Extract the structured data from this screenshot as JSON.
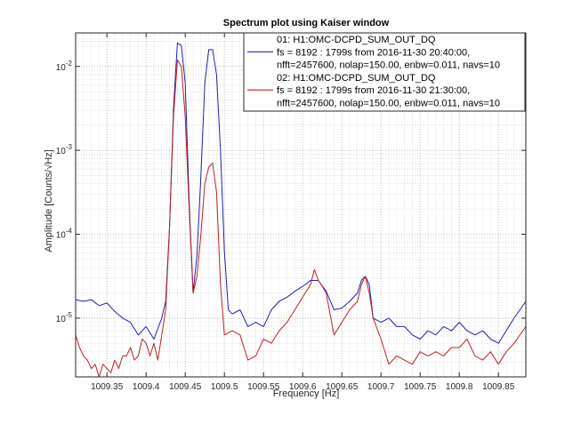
{
  "chart_data": {
    "type": "line",
    "title": "Spectrum plot using Kaiser window",
    "xlabel": "Frequency [Hz]",
    "ylabel": "Amplitude [Counts/√Hz]",
    "xlim": [
      1009.31,
      1009.885
    ],
    "ylim_log10": [
      -5.7,
      -1.6
    ],
    "y_scale": "log",
    "grid": "major and minor, dotted",
    "x_ticks": [
      {
        "value": 1009.35,
        "label": "1009.35"
      },
      {
        "value": 1009.4,
        "label": "1009.4"
      },
      {
        "value": 1009.45,
        "label": "1009.45"
      },
      {
        "value": 1009.5,
        "label": "1009.5"
      },
      {
        "value": 1009.55,
        "label": "1009.55"
      },
      {
        "value": 1009.6,
        "label": "1009.6"
      },
      {
        "value": 1009.65,
        "label": "1009.65"
      },
      {
        "value": 1009.7,
        "label": "1009.7"
      },
      {
        "value": 1009.75,
        "label": "1009.75"
      },
      {
        "value": 1009.8,
        "label": "1009.8"
      },
      {
        "value": 1009.85,
        "label": "1009.85"
      }
    ],
    "y_ticks": [
      {
        "exp": -2,
        "base": "10",
        "sup": "-2"
      },
      {
        "exp": -3,
        "base": "10",
        "sup": "-3"
      },
      {
        "exp": -4,
        "base": "10",
        "sup": "-4"
      },
      {
        "exp": -5,
        "base": "10",
        "sup": "-5"
      }
    ],
    "legend": {
      "placement": "top-right",
      "entries": [
        {
          "lines": [
            "01: H1:OMC-DCPD_SUM_OUT_DQ",
            "fs = 8192 : 1799s from 2016-11-30 20:40:00,",
            "nfft=2457600, nolap=150.00, enbw=0.011, navs=10"
          ],
          "marker_line": 1
        },
        {
          "lines": [
            "02: H1:OMC-DCPD_SUM_OUT_DQ",
            "fs = 8192 : 1799s from 2016-11-30 21:30:00,",
            "nfft=2457600, nolap=150.00, enbw=0.011, navs=10"
          ],
          "marker_line": 1
        }
      ]
    },
    "series": [
      {
        "color": "#1f1fb4",
        "x": [
          1009.31,
          1009.32,
          1009.33,
          1009.34,
          1009.35,
          1009.36,
          1009.37,
          1009.38,
          1009.39,
          1009.4,
          1009.41,
          1009.42,
          1009.425,
          1009.43,
          1009.435,
          1009.44,
          1009.445,
          1009.45,
          1009.455,
          1009.46,
          1009.465,
          1009.47,
          1009.475,
          1009.48,
          1009.485,
          1009.49,
          1009.495,
          1009.5,
          1009.505,
          1009.51,
          1009.52,
          1009.53,
          1009.54,
          1009.55,
          1009.56,
          1009.57,
          1009.58,
          1009.59,
          1009.6,
          1009.61,
          1009.62,
          1009.63,
          1009.64,
          1009.65,
          1009.66,
          1009.67,
          1009.675,
          1009.68,
          1009.685,
          1009.69,
          1009.7,
          1009.71,
          1009.72,
          1009.73,
          1009.74,
          1009.75,
          1009.76,
          1009.77,
          1009.78,
          1009.79,
          1009.8,
          1009.81,
          1009.82,
          1009.83,
          1009.84,
          1009.85,
          1009.86,
          1009.87,
          1009.885
        ],
        "log10_y": [
          -4.78,
          -4.8,
          -4.78,
          -4.85,
          -4.82,
          -4.92,
          -5.0,
          -5.05,
          -5.2,
          -5.1,
          -5.25,
          -5.0,
          -4.8,
          -3.9,
          -2.5,
          -1.72,
          -1.75,
          -2.2,
          -3.6,
          -4.7,
          -4.25,
          -3.3,
          -2.2,
          -1.8,
          -1.8,
          -2.1,
          -3.0,
          -4.2,
          -4.9,
          -4.95,
          -4.9,
          -5.1,
          -5.05,
          -5.1,
          -4.9,
          -4.8,
          -4.75,
          -4.68,
          -4.62,
          -4.55,
          -4.55,
          -4.68,
          -4.9,
          -4.88,
          -4.8,
          -4.7,
          -4.55,
          -4.5,
          -4.6,
          -5.0,
          -5.05,
          -5.0,
          -5.1,
          -5.1,
          -5.2,
          -5.25,
          -5.15,
          -5.2,
          -5.1,
          -5.15,
          -5.05,
          -5.15,
          -5.2,
          -5.15,
          -5.25,
          -5.3,
          -5.15,
          -5.0,
          -4.8
        ]
      },
      {
        "color": "#c02020",
        "x": [
          1009.31,
          1009.315,
          1009.32,
          1009.325,
          1009.33,
          1009.335,
          1009.34,
          1009.345,
          1009.35,
          1009.355,
          1009.36,
          1009.365,
          1009.37,
          1009.375,
          1009.38,
          1009.385,
          1009.39,
          1009.395,
          1009.4,
          1009.405,
          1009.41,
          1009.415,
          1009.42,
          1009.425,
          1009.43,
          1009.435,
          1009.44,
          1009.445,
          1009.45,
          1009.455,
          1009.46,
          1009.465,
          1009.47,
          1009.475,
          1009.48,
          1009.485,
          1009.49,
          1009.495,
          1009.5,
          1009.51,
          1009.52,
          1009.53,
          1009.54,
          1009.55,
          1009.56,
          1009.57,
          1009.58,
          1009.59,
          1009.6,
          1009.61,
          1009.615,
          1009.62,
          1009.625,
          1009.63,
          1009.64,
          1009.65,
          1009.66,
          1009.67,
          1009.675,
          1009.68,
          1009.685,
          1009.69,
          1009.7,
          1009.71,
          1009.72,
          1009.73,
          1009.74,
          1009.75,
          1009.76,
          1009.77,
          1009.78,
          1009.79,
          1009.8,
          1009.81,
          1009.82,
          1009.83,
          1009.84,
          1009.85,
          1009.86,
          1009.87,
          1009.885
        ],
        "log10_y": [
          -5.2,
          -5.35,
          -5.45,
          -5.5,
          -5.6,
          -5.55,
          -5.7,
          -5.55,
          -5.6,
          -5.65,
          -5.5,
          -5.6,
          -5.45,
          -5.45,
          -5.35,
          -5.5,
          -5.45,
          -5.25,
          -5.3,
          -5.45,
          -5.3,
          -5.5,
          -5.2,
          -4.9,
          -3.9,
          -2.6,
          -1.92,
          -2.0,
          -2.6,
          -3.7,
          -4.7,
          -4.5,
          -4.0,
          -3.4,
          -3.2,
          -3.15,
          -3.5,
          -4.6,
          -5.2,
          -5.15,
          -5.2,
          -5.5,
          -5.45,
          -5.25,
          -5.3,
          -5.15,
          -5.05,
          -4.9,
          -4.75,
          -4.6,
          -4.42,
          -4.55,
          -4.62,
          -4.7,
          -5.2,
          -5.05,
          -4.9,
          -4.8,
          -4.6,
          -4.5,
          -4.7,
          -5.0,
          -5.25,
          -5.55,
          -5.45,
          -5.5,
          -5.55,
          -5.4,
          -5.45,
          -5.4,
          -5.45,
          -5.35,
          -5.35,
          -5.25,
          -5.45,
          -5.5,
          -5.4,
          -5.55,
          -5.4,
          -5.3,
          -5.1
        ]
      }
    ]
  }
}
